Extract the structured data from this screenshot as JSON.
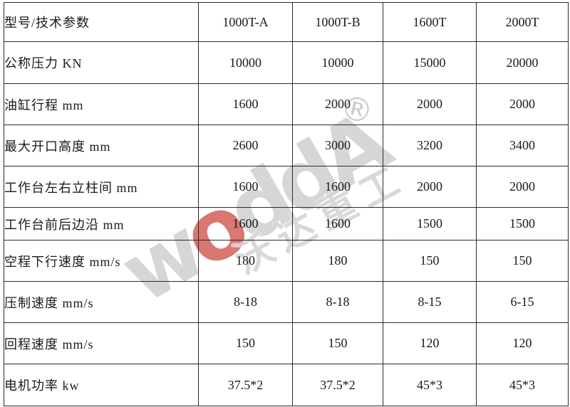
{
  "table": {
    "header": {
      "param_label": "型号/技术参数",
      "models": [
        "1000T-A",
        "1000T-B",
        "1600T",
        "2000T"
      ]
    },
    "rows": [
      {
        "label": "公称压力 KN",
        "values": [
          "10000",
          "10000",
          "15000",
          "20000"
        ]
      },
      {
        "label": "油缸行程 mm",
        "values": [
          "1600",
          "2000",
          "2000",
          "2000"
        ]
      },
      {
        "label": "最大开口高度 mm",
        "values": [
          "2600",
          "3000",
          "3200",
          "3400"
        ]
      },
      {
        "label": "工作台左右立柱间 mm",
        "values": [
          "1600",
          "1600",
          "2000",
          "2000"
        ]
      },
      {
        "label": "工作台前后边沿 mm",
        "values": [
          "1600",
          "1600",
          "1500",
          "1500"
        ]
      },
      {
        "label": "空程下行速度 mm/s",
        "values": [
          "180",
          "180",
          "150",
          "150"
        ]
      },
      {
        "label": "压制速度 mm/s",
        "values": [
          "8-18",
          "8-18",
          "8-15",
          "6-15"
        ]
      },
      {
        "label": "回程速度 mm/s",
        "values": [
          "150",
          "150",
          "120",
          "120"
        ]
      },
      {
        "label": "电机功率 kw",
        "values": [
          "37.5*2",
          "37.5*2",
          "45*3",
          "45*3"
        ]
      }
    ]
  },
  "watermark": {
    "letters": [
      "w",
      "o",
      "d",
      "d",
      "A"
    ],
    "cn_text": "沃达重工",
    "registered_mark": "®",
    "gray_color": "#d8d8d8",
    "accent_red": "#c63028"
  }
}
